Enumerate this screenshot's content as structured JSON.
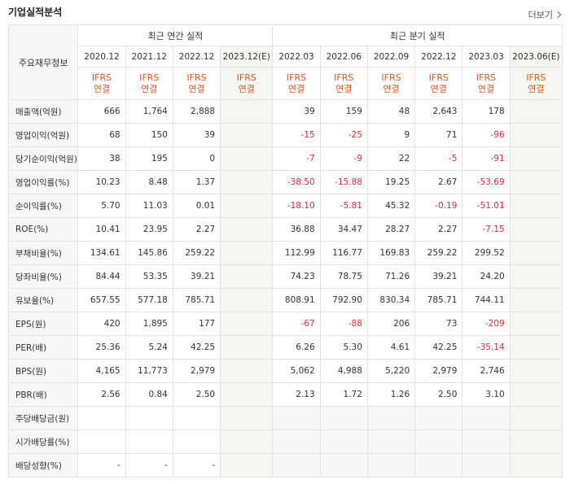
{
  "header": {
    "title": "기업실적분석",
    "more_label": "더보기"
  },
  "table": {
    "row_header_label": "주요재무정보",
    "annual_group_label": "최근 연간 실적",
    "quarter_group_label": "최근 분기 실적",
    "periods": [
      "2020.12",
      "2021.12",
      "2022.12",
      "2023.12(E)",
      "2022.03",
      "2022.06",
      "2022.09",
      "2022.12",
      "2023.03",
      "2023.06(E)"
    ],
    "accounting": [
      "IFRS",
      "IFRS",
      "IFRS",
      "IFRS",
      "IFRS",
      "IFRS",
      "IFRS",
      "IFRS",
      "IFRS",
      "IFRS"
    ],
    "basis": [
      "연결",
      "연결",
      "연결",
      "연결",
      "연결",
      "연결",
      "연결",
      "연결",
      "연결",
      "연결"
    ],
    "rows": [
      {
        "label": "매출액(억원)",
        "values": [
          "666",
          "1,764",
          "2,888",
          "",
          "39",
          "159",
          "48",
          "2,643",
          "178",
          ""
        ]
      },
      {
        "label": "영업이익(억원)",
        "values": [
          "68",
          "150",
          "39",
          "",
          "-15",
          "-25",
          "9",
          "71",
          "-96",
          ""
        ]
      },
      {
        "label": "당기순이익(억원)",
        "values": [
          "38",
          "195",
          "0",
          "",
          "-7",
          "-9",
          "22",
          "-5",
          "-91",
          ""
        ]
      },
      {
        "label": "영업이익률(%)",
        "values": [
          "10.23",
          "8.48",
          "1.37",
          "",
          "-38.50",
          "-15.88",
          "19.25",
          "2.67",
          "-53.69",
          ""
        ]
      },
      {
        "label": "순이익률(%)",
        "values": [
          "5.70",
          "11.03",
          "0.01",
          "",
          "-18.10",
          "-5.81",
          "45.32",
          "-0.19",
          "-51.01",
          ""
        ]
      },
      {
        "label": "ROE(%)",
        "values": [
          "10.41",
          "23.95",
          "2.27",
          "",
          "36.88",
          "34.47",
          "28.27",
          "2.27",
          "-7.15",
          ""
        ]
      },
      {
        "label": "부채비율(%)",
        "values": [
          "134.61",
          "145.86",
          "259.22",
          "",
          "112.99",
          "116.77",
          "169.83",
          "259.22",
          "299.52",
          ""
        ]
      },
      {
        "label": "당좌비율(%)",
        "values": [
          "84.44",
          "53.35",
          "39.21",
          "",
          "74.23",
          "78.75",
          "71.26",
          "39.21",
          "24.20",
          ""
        ]
      },
      {
        "label": "유보율(%)",
        "values": [
          "657.55",
          "577.18",
          "785.71",
          "",
          "808.91",
          "792.90",
          "830.34",
          "785.71",
          "744.11",
          ""
        ]
      },
      {
        "label": "EPS(원)",
        "values": [
          "420",
          "1,895",
          "177",
          "",
          "-67",
          "-88",
          "206",
          "73",
          "-209",
          ""
        ]
      },
      {
        "label": "PER(배)",
        "values": [
          "25.36",
          "5.24",
          "42.25",
          "",
          "6.26",
          "5.30",
          "4.61",
          "42.25",
          "-35.14",
          ""
        ]
      },
      {
        "label": "BPS(원)",
        "values": [
          "4,165",
          "11,773",
          "2,979",
          "",
          "5,062",
          "4,988",
          "5,220",
          "2,979",
          "2,746",
          ""
        ]
      },
      {
        "label": "PBR(배)",
        "values": [
          "2.56",
          "0.84",
          "2.50",
          "",
          "2.13",
          "1.72",
          "1.26",
          "2.50",
          "3.10",
          ""
        ]
      },
      {
        "label": "주당배당금(원)",
        "values": [
          "",
          "",
          "",
          "",
          "",
          "",
          "",
          "",
          "",
          ""
        ]
      },
      {
        "label": "시가배당률(%)",
        "values": [
          "",
          "",
          "",
          "",
          "",
          "",
          "",
          "",
          "",
          ""
        ]
      },
      {
        "label": "배당성향(%)",
        "values": [
          "-",
          "-",
          "-",
          "",
          "",
          "",
          "",
          "",
          "",
          ""
        ]
      }
    ]
  }
}
